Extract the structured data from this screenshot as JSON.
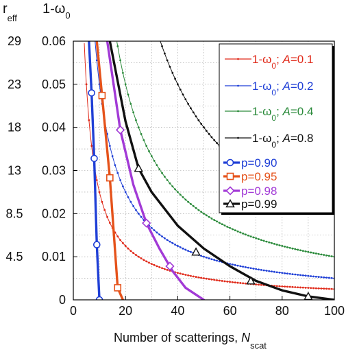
{
  "chart_data": {
    "type": "line",
    "xlabel": "Number of scatterings, ",
    "xlabel_var": "N",
    "xlabel_sub": "scat",
    "ylabel_left_main": "r",
    "ylabel_left_sub": "eff",
    "ylabel_right_main": "1-ω",
    "ylabel_right_sub": "0",
    "xlim": [
      0,
      100
    ],
    "ylim": [
      0,
      0.06
    ],
    "x_ticks": [
      "0",
      "20",
      "40",
      "60",
      "80",
      "100"
    ],
    "x_tick_values": [
      0,
      20,
      40,
      60,
      80,
      100
    ],
    "y_ticks": [
      "0",
      "0.01",
      "0.02",
      "0.03",
      "0.04",
      "0.05",
      "0.06"
    ],
    "y_tick_values": [
      0,
      0.01,
      0.02,
      0.03,
      0.04,
      0.05,
      0.06
    ],
    "reff_ticks": [
      "29",
      "23",
      "18",
      "13",
      "8.5",
      "4.5"
    ],
    "reff_tick_values": [
      0.06,
      0.05,
      0.04,
      0.03,
      0.02,
      0.01
    ],
    "grid": true,
    "legend_position": "top-right",
    "series": [
      {
        "name": "1-ω₀; A=0.1",
        "label_prefix": "1-ω",
        "label_sub": "0",
        "label_mid": "; ",
        "label_var": "A",
        "label_suffix": "=0.1",
        "color": "#e02a1a",
        "style": "thin-dotted",
        "marker": "dot",
        "k": 0.25,
        "x": [
          4.2,
          5,
          6,
          7,
          8,
          10,
          12,
          15,
          20,
          25,
          30,
          40,
          50,
          60,
          70,
          80,
          90,
          100
        ],
        "y": [
          0.06,
          0.05,
          0.0417,
          0.0357,
          0.0313,
          0.025,
          0.0208,
          0.0167,
          0.0125,
          0.01,
          0.0083,
          0.00625,
          0.005,
          0.0042,
          0.0036,
          0.0031,
          0.0028,
          0.0025
        ]
      },
      {
        "name": "1-ω₀; A=0.2",
        "label_prefix": "1-ω",
        "label_sub": "0",
        "label_mid": "; ",
        "label_var": "A",
        "label_suffix": "=0.2",
        "color": "#1f3fd6",
        "style": "thin-dotted",
        "marker": "dot",
        "k": 0.5,
        "x": [
          8.3,
          10,
          12,
          15,
          20,
          25,
          30,
          40,
          50,
          60,
          70,
          80,
          90,
          100
        ],
        "y": [
          0.06,
          0.05,
          0.0417,
          0.0333,
          0.025,
          0.02,
          0.0167,
          0.0125,
          0.01,
          0.0083,
          0.0071,
          0.00625,
          0.0056,
          0.005
        ]
      },
      {
        "name": "1-ω₀; A=0.4",
        "label_prefix": "1-ω",
        "label_sub": "0",
        "label_mid": "; ",
        "label_var": "A",
        "label_suffix": "=0.4",
        "color": "#2a8a3a",
        "style": "thin-dotted",
        "marker": "dot",
        "k": 1.0,
        "x": [
          16.7,
          20,
          25,
          30,
          40,
          50,
          60,
          70,
          80,
          90,
          100
        ],
        "y": [
          0.06,
          0.05,
          0.04,
          0.0333,
          0.025,
          0.02,
          0.0167,
          0.0143,
          0.0125,
          0.0111,
          0.01
        ]
      },
      {
        "name": "1-ω₀; A=0.8",
        "label_prefix": "1-ω",
        "label_sub": "0",
        "label_mid": "; ",
        "label_var": "A",
        "label_suffix": "=0.8",
        "color": "#111111",
        "style": "thin-dotted",
        "marker": "dot",
        "k": 2.0,
        "x": [
          33.3,
          40,
          50,
          60,
          70,
          80,
          90,
          100
        ],
        "y": [
          0.06,
          0.05,
          0.04,
          0.0333,
          0.0286,
          0.025,
          0.0222,
          0.02
        ]
      },
      {
        "name": "p=0.90",
        "color": "#1f3fd6",
        "style": "thick",
        "marker": "circle",
        "x": [
          6,
          7,
          8,
          9,
          10
        ],
        "y": [
          0.06,
          0.048,
          0.0328,
          0.0128,
          0
        ],
        "marker_x": [
          7,
          8,
          9,
          10
        ],
        "marker_y": [
          0.048,
          0.0328,
          0.0128,
          0
        ]
      },
      {
        "name": "p=0.95",
        "color": "#e5521a",
        "style": "thick",
        "marker": "square",
        "x": [
          9,
          11,
          14,
          17,
          19
        ],
        "y": [
          0.06,
          0.0474,
          0.0283,
          0.0028,
          0
        ],
        "marker_x": [
          11,
          14,
          17
        ],
        "marker_y": [
          0.0474,
          0.0283,
          0.0028
        ]
      },
      {
        "name": "p=0.98",
        "color": "#a23ad6",
        "style": "thick",
        "marker": "diamond",
        "x": [
          13,
          18,
          23,
          28,
          33,
          38,
          43,
          50
        ],
        "y": [
          0.06,
          0.0394,
          0.0267,
          0.0178,
          0.0119,
          0.0067,
          0.0028,
          0
        ],
        "marker_x": [
          18,
          28,
          37
        ],
        "marker_y": [
          0.0394,
          0.0178,
          0.0078
        ]
      },
      {
        "name": "p=0.99",
        "color": "#111111",
        "style": "thick",
        "marker": "triangle",
        "x": [
          14,
          20,
          25,
          30,
          40,
          50,
          60,
          70,
          80,
          90,
          100
        ],
        "y": [
          0.06,
          0.0414,
          0.0305,
          0.025,
          0.0172,
          0.0119,
          0.0078,
          0.0044,
          0.0022,
          0.0008,
          0
        ],
        "marker_x": [
          25,
          47,
          68,
          90
        ],
        "marker_y": [
          0.0305,
          0.0111,
          0.0044,
          0.0008
        ]
      }
    ]
  }
}
